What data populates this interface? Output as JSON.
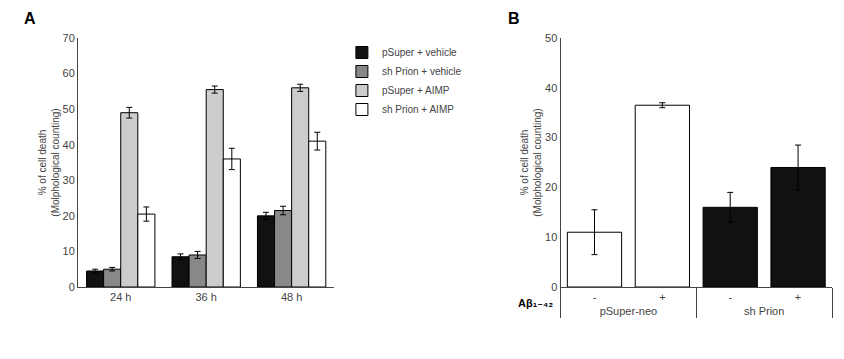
{
  "chart_data": [
    {
      "type": "bar",
      "title": "A",
      "ylabel": "% of cell death\n(Molphological counting)",
      "categories": [
        "24 h",
        "36 h",
        "48 h"
      ],
      "series": [
        {
          "name": "pSuper + vehicle",
          "color": "#111111",
          "values": [
            4.5,
            8.5,
            20.0
          ],
          "errors": [
            0.5,
            0.8,
            1.0
          ]
        },
        {
          "name": "sh Prion + vehicle",
          "color": "#888888",
          "values": [
            5.0,
            9.0,
            21.5
          ],
          "errors": [
            0.5,
            1.0,
            1.2
          ]
        },
        {
          "name": "pSuper + AIMP",
          "color": "#cccccc",
          "values": [
            49.0,
            55.5,
            56.0
          ],
          "errors": [
            1.5,
            1.0,
            1.0
          ]
        },
        {
          "name": "sh Prion + AIMP",
          "color": "#ffffff",
          "values": [
            20.5,
            36.0,
            41.0
          ],
          "errors": [
            2.0,
            3.0,
            2.5
          ]
        }
      ],
      "ylim": [
        0,
        70
      ],
      "yticks": [
        0,
        10,
        20,
        30,
        40,
        50,
        60,
        70
      ],
      "legend": "right",
      "grid": false
    },
    {
      "type": "bar",
      "title": "B",
      "ylabel": "% of cell death\n(Molphological counting)",
      "groups": [
        {
          "name": "pSuper-neo",
          "categories": [
            "-",
            "+"
          ],
          "color": "#ffffff",
          "values": [
            11.0,
            36.5
          ],
          "errors": [
            4.5,
            0.5
          ]
        },
        {
          "name": "sh Prion",
          "categories": [
            "-",
            "+"
          ],
          "color": "#111111",
          "values": [
            16.0,
            24.0
          ],
          "errors": [
            3.0,
            4.5
          ]
        }
      ],
      "annotations": [
        "Aβ₁₋₄₂"
      ],
      "ylim": [
        0,
        50
      ],
      "yticks": [
        0,
        10,
        20,
        30,
        40,
        50
      ],
      "grid": false
    }
  ]
}
